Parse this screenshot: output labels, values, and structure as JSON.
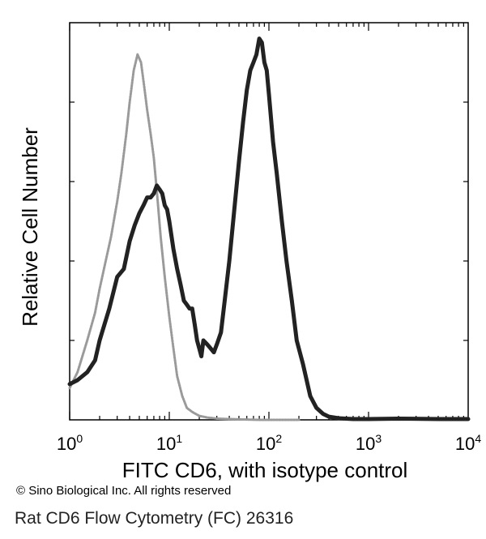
{
  "chart_data": {
    "type": "line",
    "xlabel": "FITC CD6, with isotype control",
    "ylabel": "Relative Cell Number",
    "xscale": "log",
    "xlim": [
      1,
      10000
    ],
    "ylim": [
      0,
      100
    ],
    "x_ticks": [
      {
        "base": "10",
        "exp": "0",
        "value": 1
      },
      {
        "base": "10",
        "exp": "1",
        "value": 10
      },
      {
        "base": "10",
        "exp": "2",
        "value": 100
      },
      {
        "base": "10",
        "exp": "3",
        "value": 1000
      },
      {
        "base": "10",
        "exp": "4",
        "value": 10000
      }
    ],
    "grid": false,
    "series": [
      {
        "color": "#9a9a9a",
        "style": "isotype control (light grey)",
        "x": [
          1.0,
          1.2,
          1.5,
          1.8,
          2.0,
          2.3,
          2.6,
          3.0,
          3.3,
          3.7,
          4.0,
          4.4,
          4.8,
          5.2,
          5.6,
          6.0,
          6.5,
          7.0,
          7.6,
          8.2,
          9.0,
          10.0,
          11.0,
          12.0,
          13.5,
          15.0,
          17.0,
          20.0,
          24.0,
          30.0,
          40.0,
          55.0,
          80.0,
          120.0,
          200.0
        ],
        "y": [
          8,
          12,
          20,
          27,
          33,
          40,
          46,
          55,
          62,
          72,
          80,
          88,
          92,
          90,
          84,
          78,
          72,
          66,
          56,
          46,
          36,
          26,
          18,
          11,
          6,
          3,
          2,
          1,
          0.6,
          0.3,
          0.2,
          0.1,
          0,
          0,
          0
        ]
      },
      {
        "color": "#222222",
        "style": "FITC CD6 (black)",
        "x": [
          1.0,
          1.2,
          1.5,
          1.8,
          2.0,
          2.5,
          3.0,
          3.5,
          4.0,
          4.5,
          5.0,
          5.5,
          6.0,
          6.5,
          7.0,
          7.5,
          8.0,
          8.5,
          9.0,
          9.5,
          10.0,
          11.0,
          12.0,
          13.0,
          14.0,
          15.0,
          16.0,
          17.0,
          18.0,
          19.0,
          20.0,
          21.0,
          22.0,
          24.0,
          26.0,
          28.0,
          30.0,
          33.0,
          36.0,
          40.0,
          45.0,
          50.0,
          55.0,
          60.0,
          65.0,
          70.0,
          75.0,
          80.0,
          85.0,
          90.0,
          95.0,
          100.0,
          110.0,
          120.0,
          135.0,
          150.0,
          170.0,
          190.0,
          220.0,
          260.0,
          300.0,
          350.0,
          400.0,
          500.0,
          700.0,
          1000.0,
          2000.0,
          5000.0,
          10000.0
        ],
        "y": [
          9,
          10,
          12,
          15,
          20,
          28,
          36,
          38,
          45,
          49,
          52,
          54,
          56,
          56,
          57,
          59,
          58,
          57,
          54,
          53,
          50,
          43,
          38,
          34,
          30,
          29,
          28,
          28,
          24,
          20,
          18,
          16,
          20,
          19,
          18,
          17,
          19,
          22,
          30,
          40,
          53,
          65,
          75,
          83,
          88,
          90,
          92,
          96,
          95,
          90,
          88,
          82,
          70,
          62,
          50,
          40,
          30,
          20,
          14,
          6,
          3,
          1.5,
          0.8,
          0.4,
          0.2,
          0.2,
          0.3,
          0.2,
          0.2
        ]
      }
    ]
  },
  "copyright": "© Sino Biological Inc. All rights reserved",
  "caption": "Rat CD6 Flow Cytometry (FC) 26316"
}
